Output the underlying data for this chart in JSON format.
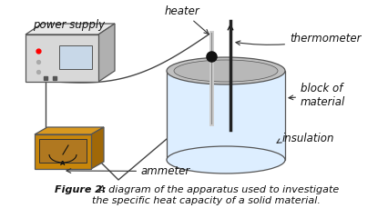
{
  "caption_bold": "Figure 2:",
  "caption_text": "  A diagram of the apparatus used to investigate\nthe specific heat capacity of a solid material.",
  "background_color": "#ffffff",
  "labels": {
    "power_supply": "power supply",
    "heater": "heater",
    "thermometer": "thermometer",
    "block_of_material": "block of\nmaterial",
    "insulation": "insulation",
    "ammeter": "ammeter"
  },
  "colors": {
    "ps_face": "#d8d8d8",
    "ps_top": "#e8e8e8",
    "ps_side": "#b0b0b0",
    "ps_outline": "#555555",
    "ps_screen": "#c8d8e8",
    "ammeter_body": "#c8860a",
    "ammeter_top": "#d89820",
    "ammeter_outline": "#555555",
    "ammeter_display": "#b07820",
    "cyl_body": "#ddeeff",
    "cyl_top": "#c8c8c8",
    "cyl_outline": "#555555",
    "rod_dark": "#222222",
    "rod_light": "#aaaaaa",
    "wire": "#444444",
    "arrow": "#333333",
    "label_color": "#111111",
    "caption_color": "#111111"
  },
  "figsize": [
    4.27,
    2.29
  ],
  "dpi": 100
}
